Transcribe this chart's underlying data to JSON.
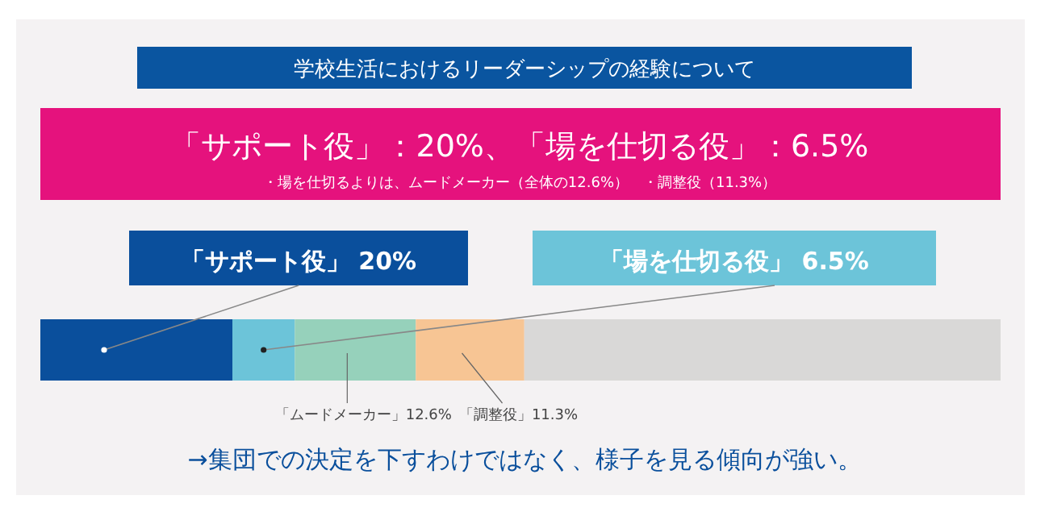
{
  "chart_data": {
    "type": "bar",
    "orientation": "horizontal",
    "stacked": true,
    "title": "学校生活におけるリーダーシップの経験について",
    "subtitle": "「サポート役」：20%、「場を仕切る役」：6.5%",
    "annotations": [
      "・場を仕切るよりは、ムードメーカー（全体の12.6%）　・調整役（11.3%）",
      "→集団での決定を下すわけではなく、様子を見る傾向が強い。"
    ],
    "categories": [
      null
    ],
    "xlim": [
      0,
      100
    ],
    "series": [
      {
        "color": "#0a4f9c",
        "values": [
          20
        ],
        "value_labels": [
          "「サポート役」 20%"
        ]
      },
      {
        "color": "#6cc4d9",
        "values": [
          6.5
        ],
        "value_labels": [
          "「場を仕切る役」 6.5%"
        ]
      },
      {
        "color": "#96d1bb",
        "values": [
          12.6
        ],
        "value_labels": [
          "「ムードメーカー」12.6%"
        ]
      },
      {
        "color": "#f7c594",
        "values": [
          11.3
        ],
        "value_labels": [
          "「調整役」11.3%"
        ]
      },
      {
        "color": "#d9d8d7",
        "values": [
          49.6
        ]
      }
    ]
  }
}
